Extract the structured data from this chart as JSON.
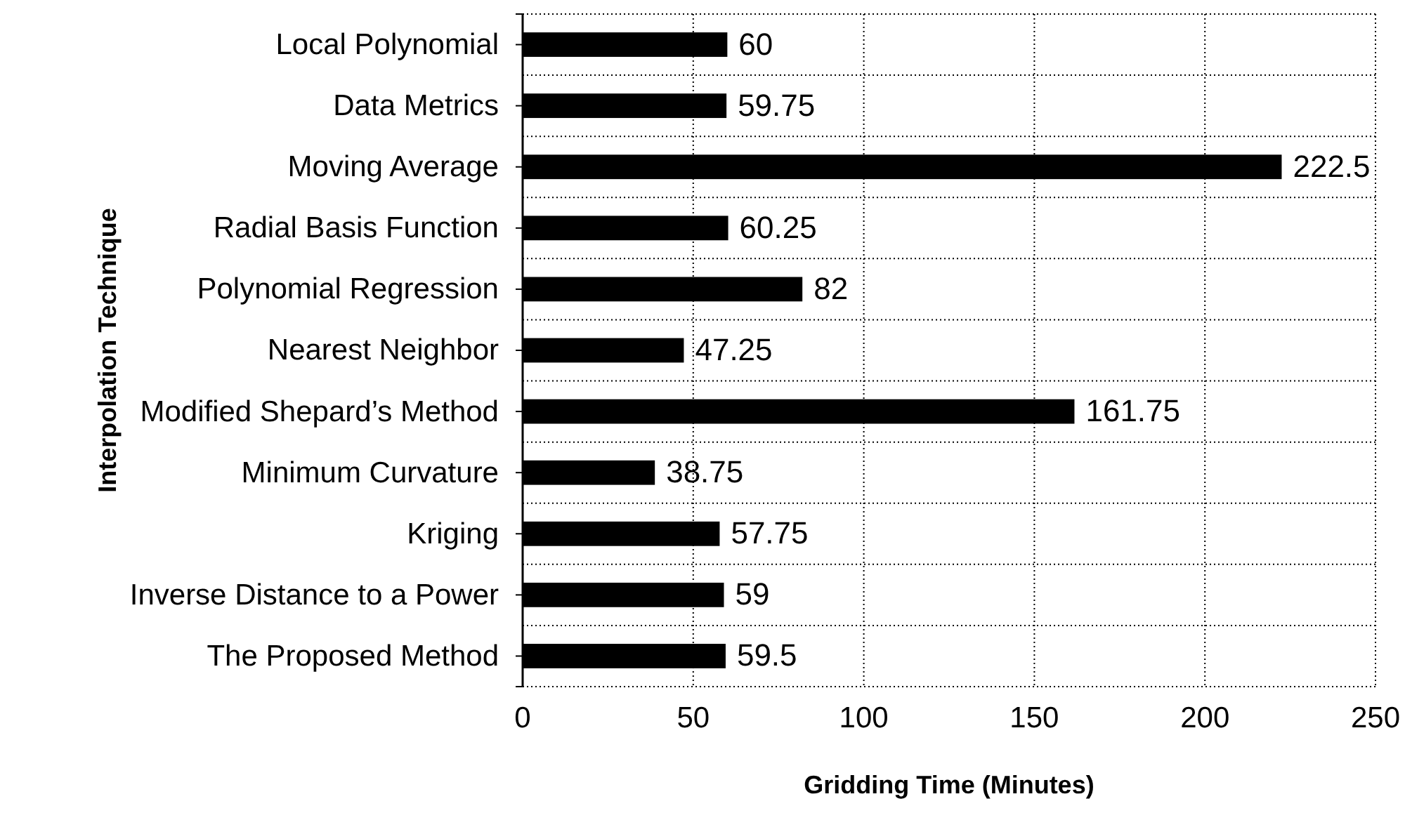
{
  "chart_data": {
    "type": "bar",
    "orientation": "horizontal",
    "xlabel": "Gridding Time (Minutes)",
    "ylabel": "Interpolation Technique",
    "categories": [
      "Local Polynomial",
      "Data Metrics",
      "Moving Average",
      "Radial Basis Function",
      "Polynomial Regression",
      "Nearest Neighbor",
      "Modified Shepard’s Method",
      "Minimum Curvature",
      "Kriging",
      "Inverse Distance to a Power",
      "The Proposed Method"
    ],
    "values": [
      60,
      59.75,
      222.5,
      60.25,
      82,
      47.25,
      161.75,
      38.75,
      57.75,
      59,
      59.5
    ],
    "color": "#000000",
    "xlim": [
      0,
      250
    ],
    "xticks": [
      0,
      50,
      100,
      150,
      200,
      250
    ],
    "grid": true,
    "data_labels": true
  }
}
